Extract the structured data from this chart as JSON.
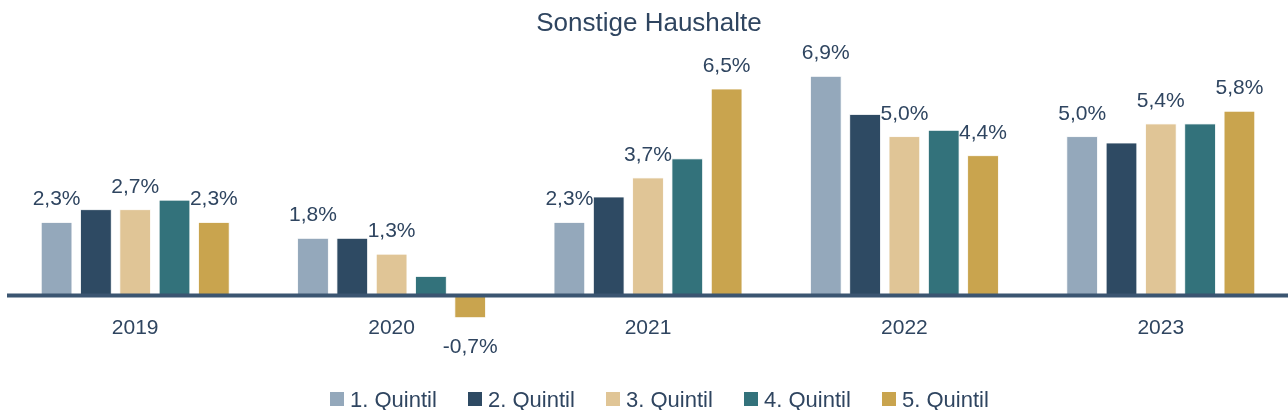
{
  "chart_data": {
    "type": "bar",
    "title": "Sonstige Haushalte",
    "categories": [
      "2019",
      "2020",
      "2021",
      "2022",
      "2023"
    ],
    "series": [
      {
        "name": "1. Quintil",
        "color": "#94a8bb",
        "values": [
          2.3,
          1.8,
          2.3,
          6.9,
          5.0
        ],
        "value_labels": [
          "2,3%",
          "1,8%",
          "2,3%",
          "6,9%",
          "5,0%"
        ]
      },
      {
        "name": "2. Quintil",
        "color": "#2e4a63",
        "values": [
          2.7,
          1.8,
          3.1,
          5.7,
          4.8
        ]
      },
      {
        "name": "3. Quintil",
        "color": "#e0c596",
        "values": [
          2.7,
          1.3,
          3.7,
          5.0,
          5.4
        ],
        "value_labels": [
          "2,7%",
          "1,3%",
          "3,7%",
          "5,0%",
          "5,4%"
        ]
      },
      {
        "name": "4. Quintil",
        "color": "#33727b",
        "values": [
          3.0,
          0.6,
          4.3,
          5.2,
          5.4
        ]
      },
      {
        "name": "5. Quintil",
        "color": "#c9a44e",
        "values": [
          2.3,
          -0.7,
          6.5,
          4.4,
          5.8
        ],
        "value_labels": [
          "2,3%",
          "-0,7%",
          "6,5%",
          "4,4%",
          "5,8%"
        ]
      }
    ],
    "legend": "bottom"
  }
}
